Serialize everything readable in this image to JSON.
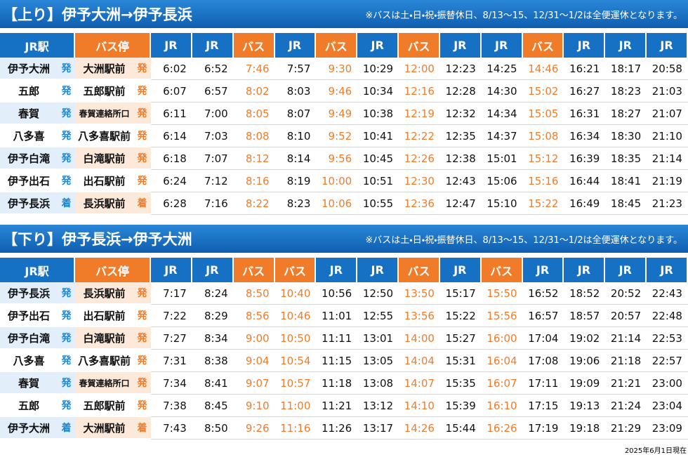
{
  "sections": [
    {
      "title": "【上り】伊予大洲→伊予長浜",
      "note": "※バスは土・日・祝・振替休日、8/13〜15、12/31〜1/2は全便運休となります。",
      "header": {
        "station": "JR駅",
        "stop": "バス停"
      },
      "columns": [
        {
          "label": "JR",
          "color": "#1670c4",
          "time_color": "#111111"
        },
        {
          "label": "JR",
          "color": "#1670c4",
          "time_color": "#111111"
        },
        {
          "label": "バス",
          "color": "#f07c2a",
          "time_color": "#f07c2a"
        },
        {
          "label": "JR",
          "color": "#1670c4",
          "time_color": "#111111"
        },
        {
          "label": "バス",
          "color": "#f07c2a",
          "time_color": "#f07c2a"
        },
        {
          "label": "JR",
          "color": "#1670c4",
          "time_color": "#111111"
        },
        {
          "label": "バス",
          "color": "#f07c2a",
          "time_color": "#f07c2a"
        },
        {
          "label": "JR",
          "color": "#1670c4",
          "time_color": "#111111"
        },
        {
          "label": "JR",
          "color": "#1670c4",
          "time_color": "#111111"
        },
        {
          "label": "バス",
          "color": "#f07c2a",
          "time_color": "#f07c2a"
        },
        {
          "label": "JR",
          "color": "#1670c4",
          "time_color": "#111111"
        },
        {
          "label": "JR",
          "color": "#1670c4",
          "time_color": "#111111"
        },
        {
          "label": "JR",
          "color": "#1670c4",
          "time_color": "#111111"
        }
      ],
      "rows": [
        {
          "station": "伊予大洲",
          "station_mark": "発",
          "stop": "大洲駅前",
          "stop_mark": "発",
          "times": [
            "6:02",
            "6:52",
            "7:46",
            "7:57",
            "9:30",
            "10:29",
            "12:00",
            "12:23",
            "14:25",
            "14:46",
            "16:21",
            "18:17",
            "20:58"
          ]
        },
        {
          "station": "五郎",
          "station_mark": "発",
          "stop": "五郎駅前",
          "stop_mark": "発",
          "times": [
            "6:07",
            "6:57",
            "8:02",
            "8:03",
            "9:46",
            "10:34",
            "12:16",
            "12:28",
            "14:30",
            "15:02",
            "16:27",
            "18:23",
            "21:03"
          ]
        },
        {
          "station": "春賀",
          "station_mark": "発",
          "stop": "春賀連絡所口",
          "stop_mark": "発",
          "times": [
            "6:11",
            "7:00",
            "8:05",
            "8:07",
            "9:49",
            "10:38",
            "12:19",
            "12:32",
            "14:34",
            "15:05",
            "16:31",
            "18:27",
            "21:07"
          ]
        },
        {
          "station": "八多喜",
          "station_mark": "発",
          "stop": "八多喜駅前",
          "stop_mark": "発",
          "times": [
            "6:14",
            "7:03",
            "8:08",
            "8:10",
            "9:52",
            "10:41",
            "12:22",
            "12:35",
            "14:37",
            "15:08",
            "16:34",
            "18:30",
            "21:10"
          ]
        },
        {
          "station": "伊予白滝",
          "station_mark": "発",
          "stop": "白滝駅前",
          "stop_mark": "発",
          "times": [
            "6:18",
            "7:07",
            "8:12",
            "8:14",
            "9:56",
            "10:45",
            "12:26",
            "12:38",
            "15:01",
            "15:12",
            "16:39",
            "18:35",
            "21:14"
          ]
        },
        {
          "station": "伊予出石",
          "station_mark": "発",
          "stop": "出石駅前",
          "stop_mark": "発",
          "times": [
            "6:24",
            "7:12",
            "8:16",
            "8:19",
            "10:00",
            "10:51",
            "12:30",
            "12:43",
            "15:06",
            "15:16",
            "16:44",
            "18:41",
            "21:19"
          ]
        },
        {
          "station": "伊予長浜",
          "station_mark": "着",
          "stop": "長浜駅前",
          "stop_mark": "着",
          "times": [
            "6:28",
            "7:16",
            "8:22",
            "8:23",
            "10:06",
            "10:55",
            "12:36",
            "12:47",
            "15:10",
            "15:22",
            "16:49",
            "18:45",
            "21:23"
          ]
        }
      ]
    },
    {
      "title": "【下り】伊予長浜→伊予大洲",
      "note": "※バスは土・日・祝・振替休日、8/13〜15、12/31〜1/2は全便運休となります。",
      "header": {
        "station": "JR駅",
        "stop": "バス停"
      },
      "columns": [
        {
          "label": "JR",
          "color": "#1670c4",
          "time_color": "#111111"
        },
        {
          "label": "JR",
          "color": "#1670c4",
          "time_color": "#111111"
        },
        {
          "label": "バス",
          "color": "#f07c2a",
          "time_color": "#f07c2a"
        },
        {
          "label": "バス",
          "color": "#f07c2a",
          "time_color": "#f07c2a"
        },
        {
          "label": "JR",
          "color": "#1670c4",
          "time_color": "#111111"
        },
        {
          "label": "JR",
          "color": "#1670c4",
          "time_color": "#111111"
        },
        {
          "label": "バス",
          "color": "#f07c2a",
          "time_color": "#f07c2a"
        },
        {
          "label": "JR",
          "color": "#1670c4",
          "time_color": "#111111"
        },
        {
          "label": "バス",
          "color": "#f07c2a",
          "time_color": "#f07c2a"
        },
        {
          "label": "JR",
          "color": "#1670c4",
          "time_color": "#111111"
        },
        {
          "label": "JR",
          "color": "#1670c4",
          "time_color": "#111111"
        },
        {
          "label": "JR",
          "color": "#1670c4",
          "time_color": "#111111"
        },
        {
          "label": "JR",
          "color": "#1670c4",
          "time_color": "#111111"
        }
      ],
      "rows": [
        {
          "station": "伊予長浜",
          "station_mark": "発",
          "stop": "長浜駅前",
          "stop_mark": "発",
          "times": [
            "7:17",
            "8:24",
            "8:50",
            "10:40",
            "10:56",
            "12:50",
            "13:50",
            "15:17",
            "15:50",
            "16:52",
            "18:52",
            "20:52",
            "22:43"
          ]
        },
        {
          "station": "伊予出石",
          "station_mark": "発",
          "stop": "出石駅前",
          "stop_mark": "発",
          "times": [
            "7:22",
            "8:29",
            "8:56",
            "10:46",
            "11:01",
            "12:55",
            "13:56",
            "15:22",
            "15:56",
            "16:57",
            "18:57",
            "20:57",
            "22:48"
          ]
        },
        {
          "station": "伊予白滝",
          "station_mark": "発",
          "stop": "白滝駅前",
          "stop_mark": "発",
          "times": [
            "7:27",
            "8:34",
            "9:00",
            "10:50",
            "11:11",
            "13:01",
            "14:00",
            "15:27",
            "16:00",
            "17:04",
            "19:02",
            "21:14",
            "22:53"
          ]
        },
        {
          "station": "八多喜",
          "station_mark": "発",
          "stop": "八多喜駅前",
          "stop_mark": "発",
          "times": [
            "7:31",
            "8:38",
            "9:04",
            "10:54",
            "11:15",
            "13:05",
            "14:04",
            "15:31",
            "16:04",
            "17:08",
            "19:06",
            "21:18",
            "22:57"
          ]
        },
        {
          "station": "春賀",
          "station_mark": "発",
          "stop": "春賀連絡所口",
          "stop_mark": "発",
          "times": [
            "7:34",
            "8:41",
            "9:07",
            "10:57",
            "11:18",
            "13:08",
            "14:07",
            "15:35",
            "16:07",
            "17:11",
            "19:09",
            "21:21",
            "23:00"
          ]
        },
        {
          "station": "五郎",
          "station_mark": "発",
          "stop": "五郎駅前",
          "stop_mark": "発",
          "times": [
            "7:38",
            "8:45",
            "9:10",
            "11:00",
            "11:21",
            "13:12",
            "14:10",
            "15:39",
            "16:10",
            "17:15",
            "19:13",
            "21:24",
            "23:04"
          ]
        },
        {
          "station": "伊予大洲",
          "station_mark": "着",
          "stop": "大洲駅前",
          "stop_mark": "着",
          "times": [
            "7:43",
            "8:50",
            "9:26",
            "11:16",
            "11:26",
            "13:17",
            "14:26",
            "15:44",
            "16:26",
            "17:19",
            "19:18",
            "21:29",
            "23:09"
          ]
        }
      ]
    }
  ],
  "footer": "2025年6月1日現在"
}
